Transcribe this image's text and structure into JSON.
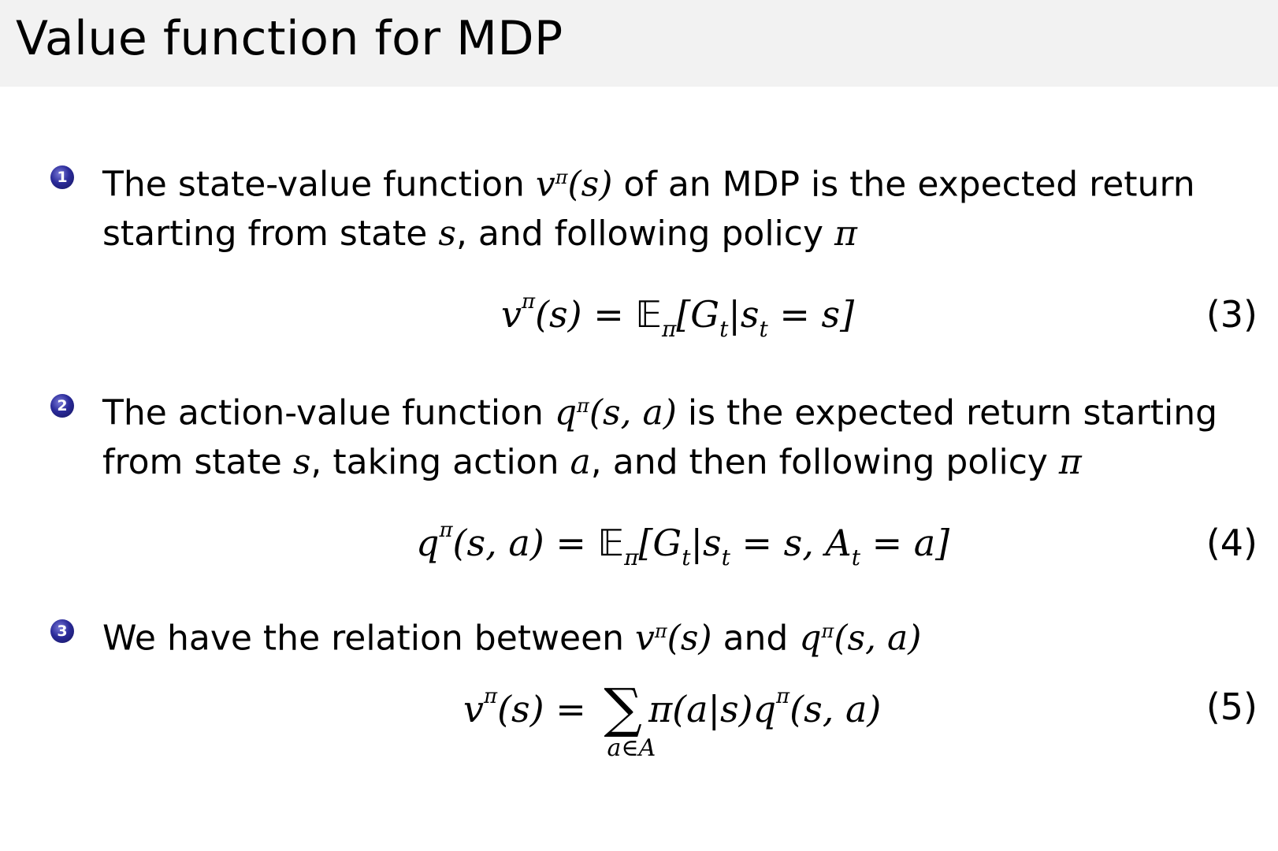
{
  "title": "Value function for MDP",
  "items": [
    {
      "number": "1",
      "line1_a": "The state-value function ",
      "line1_m": "v",
      "line1_sup": "π",
      "line1_m2": "(s)",
      "line1_b": " of an MDP is the expected return",
      "line2_a": "starting from state ",
      "line2_m": "s",
      "line2_b": ", and following policy ",
      "line2_m2": "π"
    },
    {
      "number": "2",
      "line1_a": "The action-value function ",
      "line1_m": "q",
      "line1_sup": "π",
      "line1_m2": "(s, a)",
      "line1_b": " is the expected return starting",
      "line2_a": "from state ",
      "line2_m": "s",
      "line2_b": ", taking action ",
      "line2_m2": "a",
      "line2_c": ", and then following policy ",
      "line2_m3": "π"
    },
    {
      "number": "3",
      "line1_a": "We have the relation between ",
      "line1_m": "v",
      "line1_sup": "π",
      "line1_m2": "(s)",
      "line1_b": " and ",
      "line1_m3": "q",
      "line1_sup2": "π",
      "line1_m4": "(s, a)"
    }
  ],
  "equations": [
    {
      "number": "(3)",
      "lhs": "v",
      "lhs_sup": "π",
      "lhs_args": "(s) = ",
      "E": "𝔼",
      "E_sub": "π",
      "rhs1": "[G",
      "rhs1_sub": "t",
      "rhs2": "|s",
      "rhs2_sub": "t",
      "rhs3": " = s]"
    },
    {
      "number": "(4)",
      "lhs": "q",
      "lhs_sup": "π",
      "lhs_args": "(s, a) = ",
      "E": "𝔼",
      "E_sub": "π",
      "rhs1": "[G",
      "rhs1_sub": "t",
      "rhs2": "|s",
      "rhs2_sub": "t",
      "rhs3": " = s, A",
      "rhs3_sub": "t",
      "rhs4": " = a]"
    },
    {
      "number": "(5)",
      "lhs": "v",
      "lhs_sup": "π",
      "lhs_args": "(s) = ",
      "sum": "∑",
      "sum_sub": "a∈A",
      "rhs1": "π(a|s)q",
      "rhs1_sup": "π",
      "rhs2": "(s, a)"
    }
  ]
}
